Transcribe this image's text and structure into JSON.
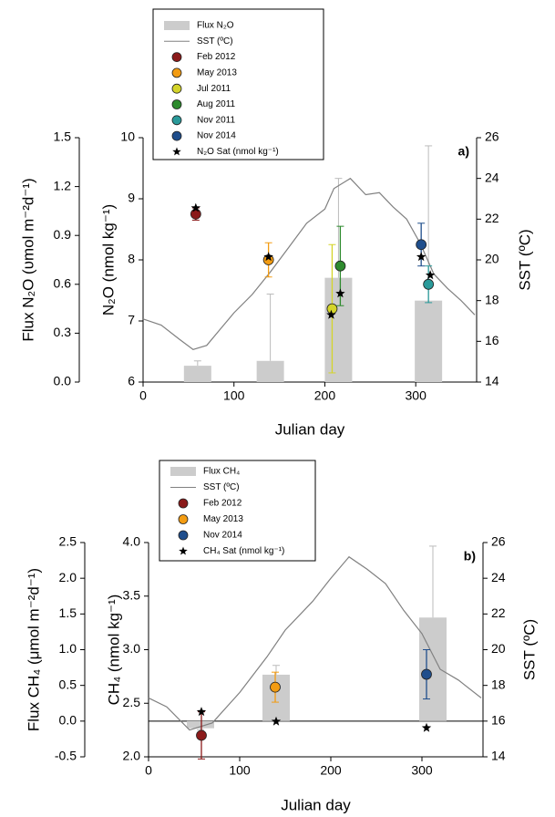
{
  "chart_data": [
    {
      "type": "combo",
      "panel_label": "a)",
      "xlabel": "Julian day",
      "ylabel": "N₂O (nmol kg⁻¹)",
      "y2label": "SST (ºC)",
      "y3label": "Flux N₂O (υmol m⁻²d⁻¹)",
      "xlim": [
        0,
        367
      ],
      "xticks": [
        0,
        100,
        200,
        300
      ],
      "ylim": [
        6,
        10
      ],
      "yticks": [
        6,
        7,
        8,
        9,
        10
      ],
      "y2lim": [
        14,
        26
      ],
      "y2ticks": [
        14,
        16,
        18,
        20,
        22,
        24,
        26
      ],
      "y3lim": [
        0,
        1.5
      ],
      "y3ticks": [
        {
          "value": 0,
          "label": "0.0"
        },
        0.3,
        0.6,
        0.9,
        1.2,
        1.5
      ],
      "zero_line": false,
      "series": [
        {
          "name": "Flux N₂O",
          "kind": "bar",
          "axis": "y3",
          "color": "#cccccc",
          "x": [
            60,
            140,
            215,
            314
          ],
          "values": [
            0.1,
            0.13,
            0.64,
            0.5
          ],
          "errors": [
            0.03,
            0.41,
            0.61,
            0.95
          ]
        },
        {
          "name": "SST (ºC)",
          "kind": "line",
          "axis": "y2",
          "color": "#808080",
          "x": [
            0,
            20,
            40,
            55,
            70,
            85,
            100,
            120,
            140,
            160,
            180,
            200,
            210,
            228,
            245,
            260,
            275,
            290,
            305,
            320,
            335,
            350,
            365
          ],
          "values": [
            17.1,
            16.8,
            16.1,
            15.6,
            15.8,
            16.6,
            17.4,
            18.3,
            19.4,
            20.6,
            21.8,
            22.5,
            23.5,
            24.0,
            23.2,
            23.3,
            22.6,
            22.0,
            20.8,
            19.3,
            18.6,
            18.0,
            17.3
          ]
        },
        {
          "name": "Feb 2012",
          "kind": "point",
          "axis": "y",
          "color": "#8b1a1a",
          "x": [
            58
          ],
          "values": [
            8.75
          ],
          "errors": [
            0.1
          ]
        },
        {
          "name": "May 2013",
          "kind": "point",
          "axis": "y",
          "color": "#f39c12",
          "x": [
            138
          ],
          "values": [
            8.0
          ],
          "errors": [
            0.28
          ]
        },
        {
          "name": "Jul 2011",
          "kind": "point",
          "axis": "y",
          "color": "#d4d42a",
          "x": [
            208
          ],
          "values": [
            7.2
          ],
          "errors": [
            1.05
          ]
        },
        {
          "name": "Aug 2011",
          "kind": "point",
          "axis": "y",
          "color": "#2e8b2e",
          "x": [
            217
          ],
          "values": [
            7.9
          ],
          "errors": [
            0.65
          ]
        },
        {
          "name": "Nov 2011",
          "kind": "point",
          "axis": "y",
          "color": "#2a9a9a",
          "x": [
            314
          ],
          "values": [
            7.6
          ],
          "errors": [
            0.3
          ]
        },
        {
          "name": "Nov 2014",
          "kind": "point",
          "axis": "y",
          "color": "#1f4e8c",
          "x": [
            306
          ],
          "values": [
            8.25
          ],
          "errors": [
            0.35
          ]
        },
        {
          "name": "N₂O Sat (nmol kg⁻¹)",
          "kind": "star",
          "axis": "y",
          "color": "#000000",
          "x": [
            58,
            138,
            207,
            217,
            306,
            316
          ],
          "values": [
            8.85,
            8.05,
            7.1,
            7.45,
            8.05,
            7.75
          ]
        }
      ]
    },
    {
      "type": "combo",
      "panel_label": "b)",
      "xlabel": "Julian day",
      "ylabel": "CH₄ (nmol kg⁻¹)",
      "y2label": "SST (ºC)",
      "y3label": "Flux CH₄ (μmol m⁻²d⁻¹)",
      "xlim": [
        0,
        367
      ],
      "xticks": [
        0,
        100,
        200,
        300
      ],
      "ylim": [
        2,
        4
      ],
      "yticks": [
        {
          "value": 2,
          "label": "2.0"
        },
        2.5,
        {
          "value": 3,
          "label": "3.0"
        },
        3.5,
        {
          "value": 4,
          "label": "4.0"
        }
      ],
      "y2lim": [
        14,
        26
      ],
      "y2ticks": [
        14,
        16,
        18,
        20,
        22,
        24,
        26
      ],
      "y3lim": [
        -0.5,
        2.5
      ],
      "y3ticks": [
        -0.5,
        {
          "value": 0,
          "label": "0.0"
        },
        0.5,
        {
          "value": 1,
          "label": "1.0"
        },
        1.5,
        {
          "value": 2,
          "label": "2.0"
        },
        2.5
      ],
      "zero_line": true,
      "series": [
        {
          "name": "Flux CH₄",
          "kind": "bar",
          "axis": "y3",
          "color": "#cccccc",
          "x": [
            57,
            140,
            312
          ],
          "values": [
            -0.1,
            0.65,
            1.45
          ],
          "errors": [
            0.02,
            0.13,
            1.0
          ]
        },
        {
          "name": "SST (ºC)",
          "kind": "line",
          "axis": "y2",
          "color": "#808080",
          "x": [
            0,
            20,
            45,
            70,
            100,
            130,
            150,
            180,
            200,
            220,
            240,
            260,
            280,
            300,
            320,
            340,
            365
          ],
          "values": [
            17.3,
            16.8,
            15.5,
            15.9,
            17.6,
            19.6,
            21.1,
            22.7,
            24.0,
            25.2,
            24.5,
            23.7,
            22.2,
            20.9,
            18.9,
            18.3,
            17.3
          ]
        },
        {
          "name": "Feb 2012",
          "kind": "point",
          "axis": "y",
          "color": "#8b1a1a",
          "x": [
            58
          ],
          "values": [
            2.2
          ],
          "errors": [
            0.22
          ]
        },
        {
          "name": "May 2013",
          "kind": "point",
          "axis": "y",
          "color": "#f39c12",
          "x": [
            139
          ],
          "values": [
            2.65
          ],
          "errors": [
            0.14
          ]
        },
        {
          "name": "Nov 2014",
          "kind": "point",
          "axis": "y",
          "color": "#1f4e8c",
          "x": [
            305
          ],
          "values": [
            2.77
          ],
          "errors": [
            0.23
          ]
        },
        {
          "name": "CH₄ Sat (nmol kg⁻¹)",
          "kind": "star",
          "axis": "y",
          "color": "#000000",
          "x": [
            58,
            140,
            305
          ],
          "values": [
            2.42,
            2.33,
            2.27
          ]
        }
      ]
    }
  ]
}
